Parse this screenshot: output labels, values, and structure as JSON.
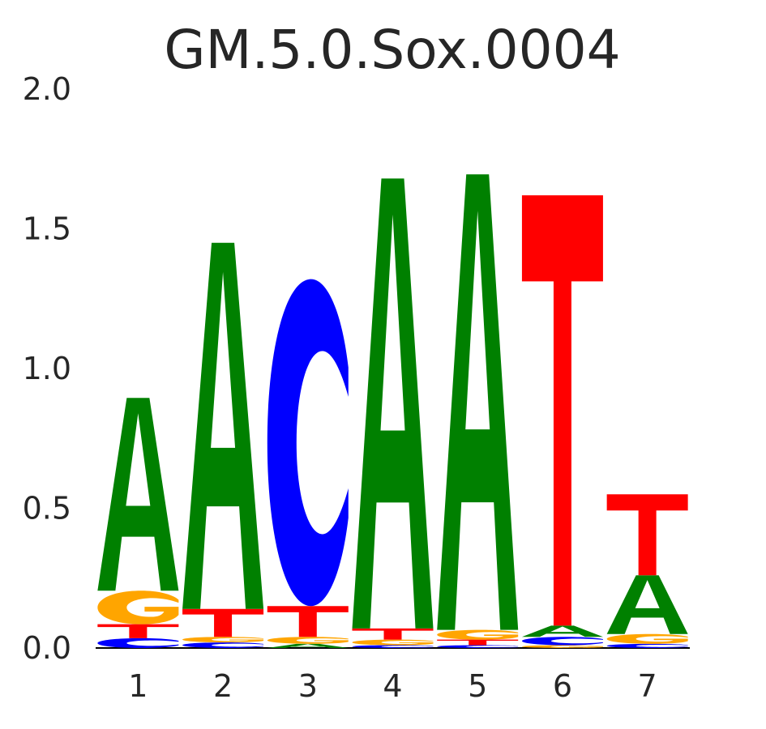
{
  "chart_data": {
    "type": "sequence-logo",
    "title": "GM.5.0.Sox.0004",
    "xlabel": "",
    "ylabel": "",
    "ylim": [
      0,
      2.0
    ],
    "y_ticks": [
      "0.0",
      "0.5",
      "1.0",
      "1.5",
      "2.0"
    ],
    "y_tick_values": [
      0,
      0.5,
      1.0,
      1.5,
      2.0
    ],
    "grid": false,
    "colors": {
      "A": "#008000",
      "C": "#0000ff",
      "G": "#ffa500",
      "T": "#ff0000"
    },
    "positions": [
      {
        "label": "1",
        "stack": [
          {
            "base": "C",
            "height": 0.035
          },
          {
            "base": "T",
            "height": 0.05
          },
          {
            "base": "G",
            "height": 0.12
          },
          {
            "base": "A",
            "height": 0.69
          }
        ]
      },
      {
        "label": "2",
        "stack": [
          {
            "base": "C",
            "height": 0.02
          },
          {
            "base": "G",
            "height": 0.02
          },
          {
            "base": "T",
            "height": 0.1
          },
          {
            "base": "A",
            "height": 1.31
          }
        ]
      },
      {
        "label": "3",
        "stack": [
          {
            "base": "A",
            "height": 0.015
          },
          {
            "base": "G",
            "height": 0.025
          },
          {
            "base": "T",
            "height": 0.11
          },
          {
            "base": "C",
            "height": 1.17
          }
        ]
      },
      {
        "label": "4",
        "stack": [
          {
            "base": "C",
            "height": 0.01
          },
          {
            "base": "G",
            "height": 0.02
          },
          {
            "base": "T",
            "height": 0.04
          },
          {
            "base": "A",
            "height": 1.61
          }
        ]
      },
      {
        "label": "5",
        "stack": [
          {
            "base": "C",
            "height": 0.01
          },
          {
            "base": "T",
            "height": 0.02
          },
          {
            "base": "G",
            "height": 0.035
          },
          {
            "base": "A",
            "height": 1.63
          }
        ]
      },
      {
        "label": "6",
        "stack": [
          {
            "base": "G",
            "height": 0.01
          },
          {
            "base": "C",
            "height": 0.03
          },
          {
            "base": "A",
            "height": 0.04
          },
          {
            "base": "T",
            "height": 1.54
          }
        ]
      },
      {
        "label": "7",
        "stack": [
          {
            "base": "C",
            "height": 0.015
          },
          {
            "base": "G",
            "height": 0.035
          },
          {
            "base": "A",
            "height": 0.21
          },
          {
            "base": "T",
            "height": 0.29
          }
        ]
      }
    ]
  }
}
